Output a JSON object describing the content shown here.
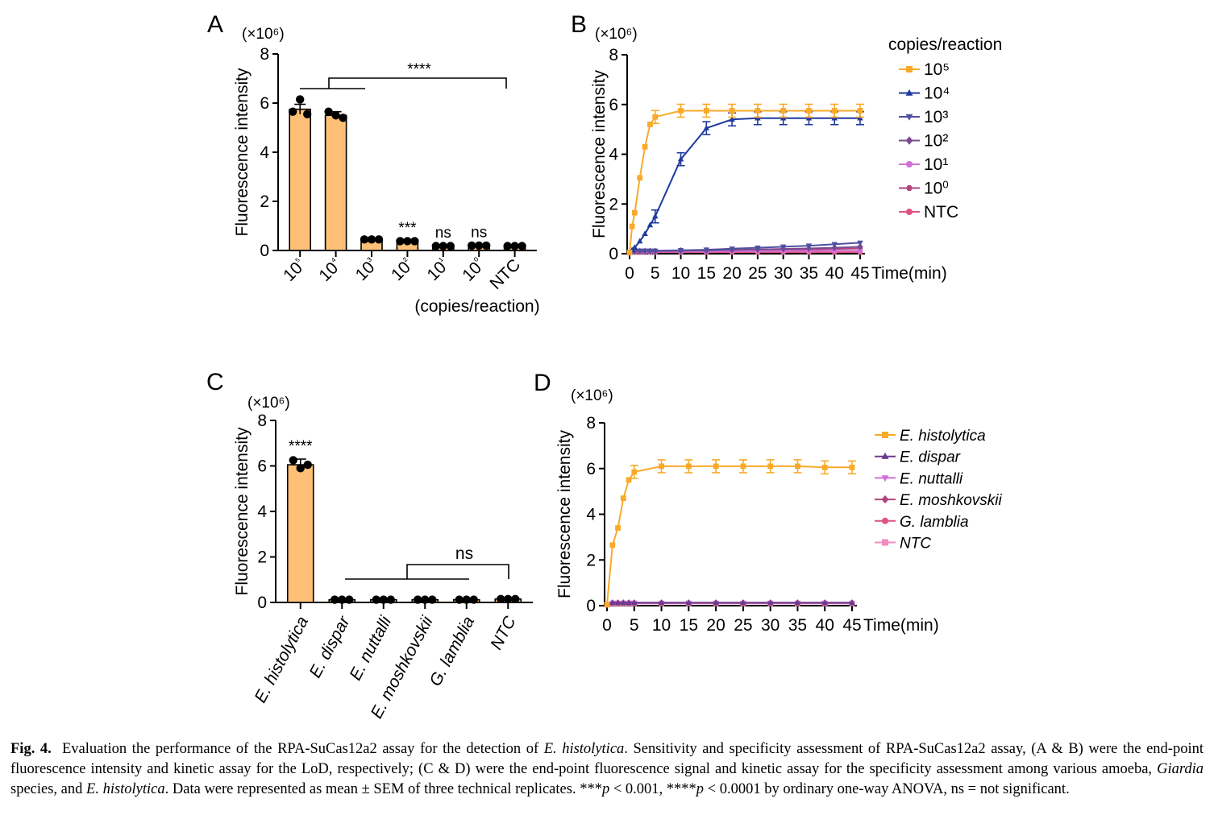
{
  "colors": {
    "orange": "#F9AA2A",
    "bar_fill": "#FDC076",
    "blue": "#1F3A9E",
    "indigo": "#4F4FA0",
    "purple": "#7A4B91",
    "violet": "#D070D8",
    "magenta": "#B0457E",
    "pink": "#E0527E",
    "lightpink": "#F08CC0",
    "dpurple": "#6B3A8C"
  },
  "caption": {
    "fig_label": "Fig. 4.",
    "text_a": "Evaluation the performance of the RPA-SuCas12a2 assay for the detection of ",
    "text_b": "E. histolytica",
    "text_c": ". Sensitivity and specificity assessment of RPA-SuCas12a2 assay, (A & B) were the end-point fluorescence intensity and kinetic assay for the LoD, respectively; (C & D) were the end-point fluorescence signal and kinetic assay for the specificity assessment among various amoeba, ",
    "text_d": "Giardia",
    "text_e": " species, and ",
    "text_f": "E. histolytica",
    "text_g": ". Data were represented as mean ± SEM of three technical replicates. ***",
    "text_h": "p",
    "text_i": " < 0.001, ****",
    "text_j": "p",
    "text_k": " < 0.0001 by ordinary one-way ANOVA, ns = not significant."
  },
  "chart_data": [
    {
      "panel": "A",
      "type": "bar",
      "scale_label": "(×10⁶)",
      "ylabel": "Fluorescence intensity",
      "xlabel": "(copies/reaction)",
      "ylim": [
        0,
        8
      ],
      "yticks": [
        "0",
        "2",
        "4",
        "6",
        "8"
      ],
      "categories": [
        "10⁵",
        "10⁴",
        "10³",
        "10²",
        "10¹",
        "10⁰",
        "NTC"
      ],
      "values": [
        5.75,
        5.5,
        0.45,
        0.38,
        0.18,
        0.2,
        0.18
      ],
      "errors": [
        0.2,
        0.15,
        0.03,
        0.02,
        0.01,
        0.01,
        0.01
      ],
      "points": [
        [
          5.65,
          6.15,
          5.55
        ],
        [
          5.65,
          5.5,
          5.4
        ],
        [
          0.45,
          0.45,
          0.45
        ],
        [
          0.38,
          0.38,
          0.38
        ],
        [
          0.18,
          0.18,
          0.18
        ],
        [
          0.2,
          0.2,
          0.2
        ],
        [
          0.18,
          0.18,
          0.18
        ]
      ],
      "annotations": [
        "",
        "",
        "",
        "***",
        "ns",
        "ns",
        ""
      ],
      "bracket_label": "****"
    },
    {
      "panel": "B",
      "type": "line",
      "scale_label": "(×10⁶)",
      "ylabel": "Fluorescence intensity",
      "xlabel": "Time(min)",
      "ylim": [
        0,
        8
      ],
      "yticks": [
        "0",
        "2",
        "4",
        "6",
        "8"
      ],
      "xticks": [
        "0",
        "5",
        "10",
        "15",
        "20",
        "25",
        "30",
        "35",
        "40",
        "45"
      ],
      "legend_title": "copies/reaction",
      "legend_position": "right",
      "series": [
        {
          "name": "10⁵",
          "marker": "square",
          "color_key": "orange",
          "x": [
            0,
            0.5,
            1,
            2,
            3,
            4,
            5,
            10,
            15,
            20,
            25,
            30,
            35,
            40,
            45
          ],
          "y": [
            0.05,
            1.1,
            1.65,
            3.05,
            4.3,
            5.2,
            5.5,
            5.75,
            5.75,
            5.75,
            5.75,
            5.75,
            5.75,
            5.75,
            5.75
          ]
        },
        {
          "name": "10⁴",
          "marker": "triangle-up",
          "color_key": "blue",
          "x": [
            0,
            0.5,
            1,
            2,
            3,
            4,
            5,
            10,
            15,
            20,
            25,
            30,
            35,
            40,
            45
          ],
          "y": [
            0.05,
            0.15,
            0.25,
            0.5,
            0.8,
            1.15,
            1.5,
            3.8,
            5.05,
            5.4,
            5.45,
            5.45,
            5.45,
            5.45,
            5.45
          ]
        },
        {
          "name": "10³",
          "marker": "triangle-down",
          "color_key": "indigo",
          "x": [
            0,
            0.5,
            1,
            2,
            3,
            4,
            5,
            10,
            15,
            20,
            25,
            30,
            35,
            40,
            45
          ],
          "y": [
            0.05,
            0.1,
            0.12,
            0.12,
            0.12,
            0.12,
            0.12,
            0.14,
            0.16,
            0.2,
            0.24,
            0.28,
            0.32,
            0.38,
            0.44
          ]
        },
        {
          "name": "10²",
          "marker": "diamond",
          "color_key": "purple",
          "x": [
            0,
            0.5,
            1,
            2,
            3,
            4,
            5,
            10,
            15,
            20,
            25,
            30,
            35,
            40,
            45
          ],
          "y": [
            0.05,
            0.1,
            0.1,
            0.1,
            0.1,
            0.1,
            0.1,
            0.12,
            0.13,
            0.15,
            0.17,
            0.19,
            0.21,
            0.24,
            0.28
          ]
        },
        {
          "name": "10¹",
          "marker": "circle",
          "color_key": "violet",
          "x": [
            0,
            0.5,
            1,
            2,
            3,
            4,
            5,
            10,
            15,
            20,
            25,
            30,
            35,
            40,
            45
          ],
          "y": [
            0.05,
            0.08,
            0.08,
            0.08,
            0.08,
            0.08,
            0.08,
            0.09,
            0.09,
            0.1,
            0.1,
            0.11,
            0.11,
            0.12,
            0.12
          ]
        },
        {
          "name": "10",
          "name_sup": "0",
          "marker": "hexagon",
          "color_key": "magenta",
          "x": [
            0,
            0.5,
            1,
            2,
            3,
            4,
            5,
            10,
            15,
            20,
            25,
            30,
            35,
            40,
            45
          ],
          "y": [
            0.05,
            0.08,
            0.08,
            0.08,
            0.08,
            0.08,
            0.08,
            0.09,
            0.1,
            0.11,
            0.13,
            0.15,
            0.17,
            0.19,
            0.21
          ]
        },
        {
          "name": "NTC",
          "marker": "circle",
          "color_key": "pink",
          "x": [
            0,
            0.5,
            1,
            2,
            3,
            4,
            5,
            10,
            15,
            20,
            25,
            30,
            35,
            40,
            45
          ],
          "y": [
            0.04,
            0.06,
            0.06,
            0.06,
            0.06,
            0.06,
            0.06,
            0.06,
            0.06,
            0.06,
            0.06,
            0.06,
            0.06,
            0.06,
            0.06
          ]
        }
      ]
    },
    {
      "panel": "C",
      "type": "bar",
      "scale_label": "(×10⁶)",
      "ylabel": "Fluorescence intensity",
      "ylim": [
        0,
        8
      ],
      "yticks": [
        "0",
        "2",
        "4",
        "6",
        "8"
      ],
      "categories": [
        "E. histolytica",
        "E. dispar",
        "E. nuttalli",
        "E. moshkovskii",
        "G. lamblia",
        "NTC"
      ],
      "values": [
        6.05,
        0.12,
        0.12,
        0.12,
        0.12,
        0.15
      ],
      "errors": [
        0.25,
        0.01,
        0.01,
        0.01,
        0.01,
        0.02
      ],
      "points": [
        [
          6.25,
          5.9,
          6.05
        ],
        [
          0.12,
          0.12,
          0.12
        ],
        [
          0.12,
          0.12,
          0.12
        ],
        [
          0.12,
          0.12,
          0.12
        ],
        [
          0.12,
          0.12,
          0.12
        ],
        [
          0.15,
          0.15,
          0.15
        ]
      ],
      "annotations": [
        "****",
        "",
        "",
        "",
        "",
        ""
      ],
      "bracket_label": "ns"
    },
    {
      "panel": "D",
      "type": "line",
      "scale_label": "(×10⁶)",
      "ylabel": "Fluorescence intensity",
      "xlabel": "Time(min)",
      "ylim": [
        0,
        8
      ],
      "yticks": [
        "0",
        "2",
        "4",
        "6",
        "8"
      ],
      "xticks": [
        "0",
        "5",
        "10",
        "15",
        "20",
        "25",
        "30",
        "35",
        "40",
        "45"
      ],
      "legend_position": "right",
      "series": [
        {
          "name": "E. histolytica",
          "marker": "square",
          "color_key": "orange",
          "x": [
            0,
            1,
            2,
            3,
            4,
            5,
            10,
            15,
            20,
            25,
            30,
            35,
            40,
            45
          ],
          "y": [
            0.05,
            2.65,
            3.4,
            4.7,
            5.5,
            5.85,
            6.1,
            6.1,
            6.1,
            6.1,
            6.1,
            6.1,
            6.05,
            6.05
          ]
        },
        {
          "name": "E. dispar",
          "marker": "triangle-up",
          "color_key": "dpurple",
          "x": [
            0,
            1,
            2,
            3,
            4,
            5,
            10,
            15,
            20,
            25,
            30,
            35,
            40,
            45
          ],
          "y": [
            0.05,
            0.13,
            0.13,
            0.13,
            0.13,
            0.13,
            0.13,
            0.13,
            0.13,
            0.13,
            0.13,
            0.13,
            0.13,
            0.13
          ]
        },
        {
          "name": "E. nuttalli",
          "marker": "triangle-down",
          "color_key": "violet",
          "x": [
            0,
            1,
            2,
            3,
            4,
            5,
            10,
            15,
            20,
            25,
            30,
            35,
            40,
            45
          ],
          "y": [
            0.05,
            0.12,
            0.12,
            0.12,
            0.12,
            0.12,
            0.12,
            0.12,
            0.12,
            0.12,
            0.12,
            0.12,
            0.12,
            0.12
          ]
        },
        {
          "name": "E. moshkovskii",
          "marker": "diamond",
          "color_key": "magenta",
          "x": [
            0,
            1,
            2,
            3,
            4,
            5,
            10,
            15,
            20,
            25,
            30,
            35,
            40,
            45
          ],
          "y": [
            0.05,
            0.12,
            0.12,
            0.12,
            0.12,
            0.12,
            0.12,
            0.12,
            0.12,
            0.12,
            0.12,
            0.12,
            0.12,
            0.12
          ]
        },
        {
          "name": "G. lamblia",
          "marker": "circle",
          "color_key": "pink",
          "x": [
            0,
            1,
            2,
            3,
            4,
            5,
            10,
            15,
            20,
            25,
            30,
            35,
            40,
            45
          ],
          "y": [
            0.05,
            0.11,
            0.11,
            0.11,
            0.11,
            0.11,
            0.11,
            0.11,
            0.11,
            0.11,
            0.11,
            0.11,
            0.11,
            0.11
          ]
        },
        {
          "name": "NTC",
          "marker": "square",
          "color_key": "lightpink",
          "x": [
            0,
            1,
            2,
            3,
            4,
            5,
            10,
            15,
            20,
            25,
            30,
            35,
            40,
            45
          ],
          "y": [
            0.04,
            0.1,
            0.1,
            0.1,
            0.1,
            0.1,
            0.1,
            0.1,
            0.1,
            0.1,
            0.1,
            0.1,
            0.1,
            0.1
          ]
        }
      ]
    }
  ]
}
